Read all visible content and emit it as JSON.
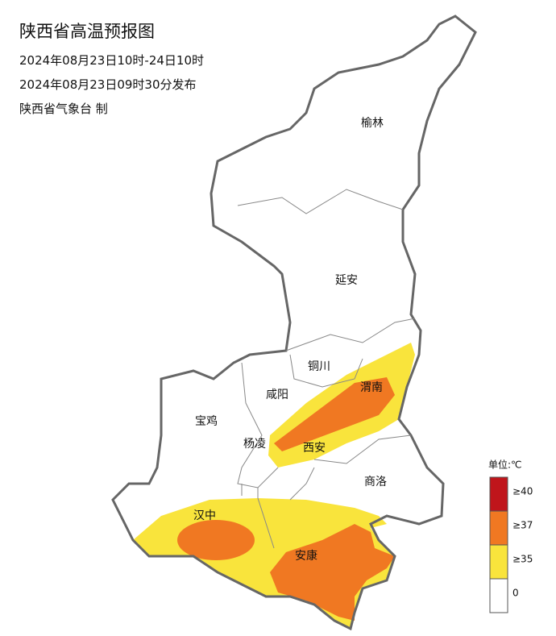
{
  "header": {
    "title": "陕西省高温预报图",
    "valid": "2024年08月23日10时-24日10时",
    "issued": "2024年08月23日09时30分发布",
    "issuer": "陕西省气象台 制"
  },
  "labels": [
    "榆林",
    "延安",
    "铜川",
    "咸阳",
    "渭南",
    "宝鸡",
    "杨凌",
    "西安",
    "商洛",
    "汉中",
    "安康"
  ],
  "legend": {
    "unit": "单位:℃",
    "items": [
      "≥40",
      "≥37",
      "≥35",
      "0"
    ]
  }
}
